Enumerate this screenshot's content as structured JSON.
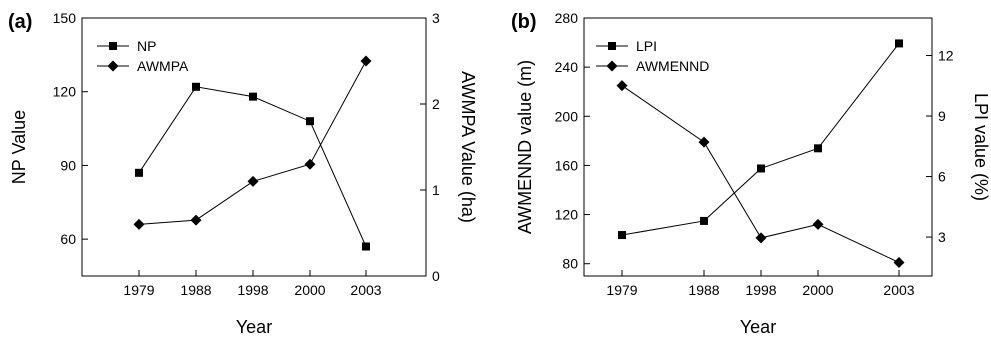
{
  "chart_data": [
    {
      "type": "line",
      "panel_label": "(a)",
      "categories": [
        "1979",
        "1988",
        "1998",
        "2000",
        "2003"
      ],
      "xlabel": "Year",
      "ylabel": "NP Value",
      "y2label": "AWMPA Value (ha)",
      "ylim": [
        45,
        150
      ],
      "y_ticks": [
        "60",
        "90",
        "120",
        "150"
      ],
      "y2lim": [
        0,
        3
      ],
      "y2_ticks": [
        "0",
        "1",
        "2",
        "3"
      ],
      "legend_position": "top-left",
      "series": [
        {
          "name": "NP",
          "axis": "left",
          "marker": "square",
          "values": [
            87,
            122,
            118,
            108,
            57
          ]
        },
        {
          "name": "AWMPA",
          "axis": "right",
          "marker": "diamond",
          "values": [
            0.6,
            0.65,
            1.1,
            1.3,
            2.5
          ]
        }
      ]
    },
    {
      "type": "line",
      "panel_label": "(b)",
      "categories": [
        "1979",
        "1988",
        "1998",
        "2000",
        "2003"
      ],
      "xlabel": "Year",
      "ylabel": "AWMENND value (m)",
      "y2label": "LPI value (%)",
      "ylim": [
        70,
        280
      ],
      "y_ticks": [
        "80",
        "120",
        "160",
        "200",
        "240",
        "280"
      ],
      "y2lim": [
        1.07,
        13.86
      ],
      "y2_ticks": [
        "3",
        "6",
        "9",
        "12"
      ],
      "legend_position": "top-left",
      "series": [
        {
          "name": "LPI",
          "axis": "right",
          "marker": "square",
          "values": [
            3.1,
            3.8,
            6.4,
            7.4,
            12.6
          ]
        },
        {
          "name": "AWMENND",
          "axis": "left",
          "marker": "diamond",
          "values": [
            225,
            179,
            101,
            112,
            81
          ]
        }
      ]
    }
  ]
}
